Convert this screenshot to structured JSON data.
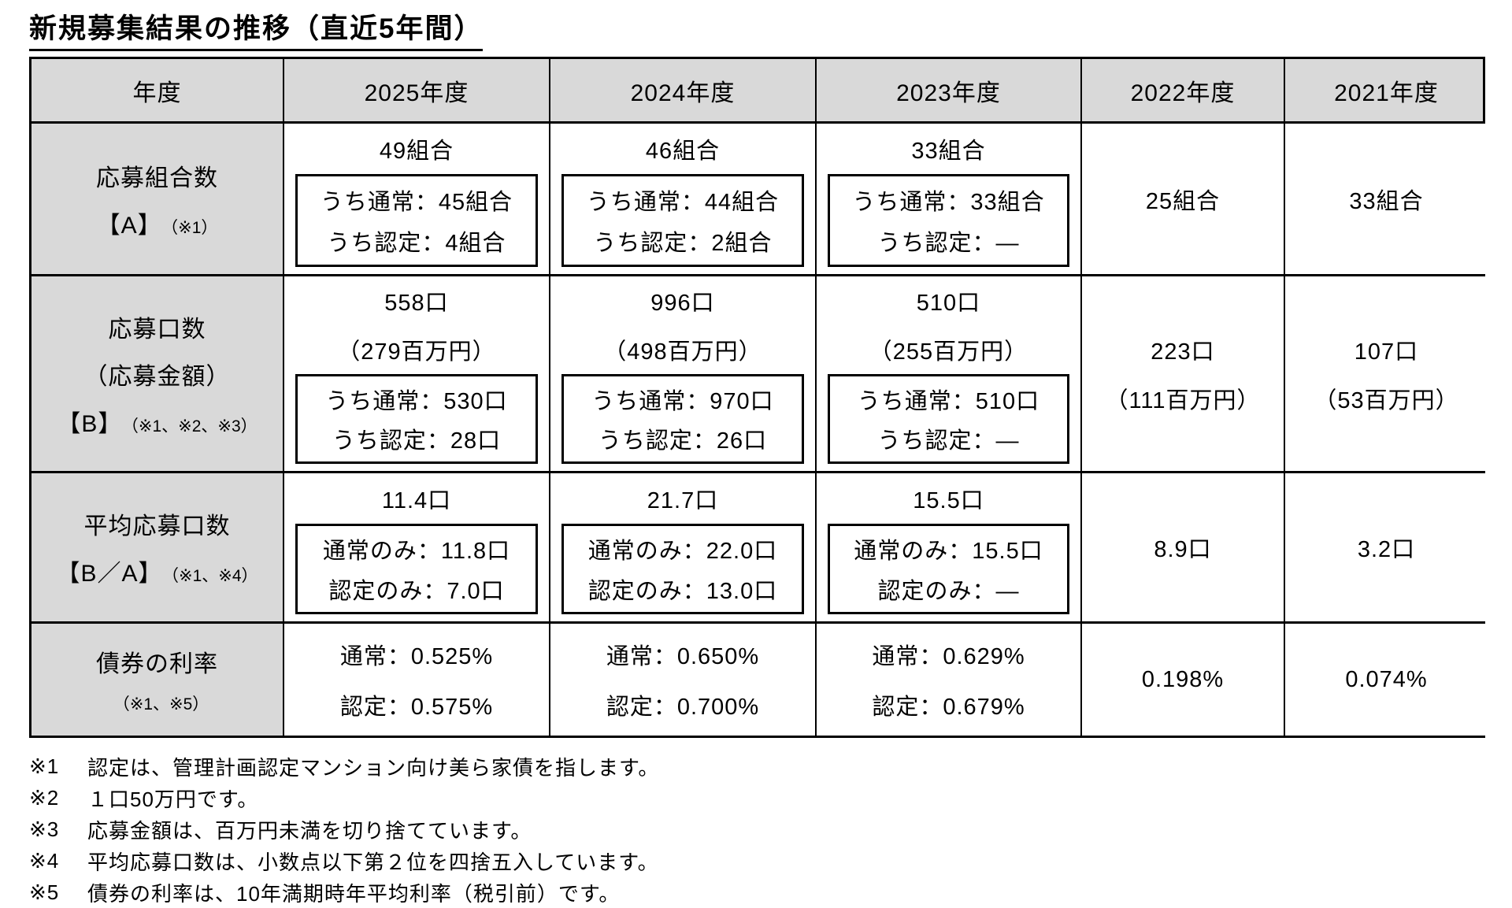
{
  "title": "新規募集結果の推移（直近5年間）",
  "colors": {
    "header_bg": "#d9d9d9",
    "border": "#000000",
    "text": "#000000",
    "page_bg": "#ffffff"
  },
  "table": {
    "corner_label": "年度",
    "year_headers": [
      "2025年度",
      "2024年度",
      "2023年度",
      "2022年度",
      "2021年度"
    ],
    "rows": [
      {
        "label_lines": [
          "応募組合数"
        ],
        "label_key": "【A】",
        "label_note": "（※1）",
        "cells": [
          {
            "main": [
              "49組合"
            ],
            "box": [
              "うち通常：45組合",
              "うち認定：4組合"
            ]
          },
          {
            "main": [
              "46組合"
            ],
            "box": [
              "うち通常：44組合",
              "うち認定：2組合"
            ]
          },
          {
            "main": [
              "33組合"
            ],
            "box": [
              "うち通常：33組合",
              "うち認定：―"
            ]
          },
          {
            "main": [
              "25組合"
            ]
          },
          {
            "main": [
              "33組合"
            ]
          }
        ]
      },
      {
        "label_lines": [
          "応募口数",
          "（応募金額）"
        ],
        "label_key": "【B】",
        "label_note": "（※1、※2、※3）",
        "cells": [
          {
            "main": [
              "558口",
              "（279百万円）"
            ],
            "box": [
              "うち通常：530口",
              "うち認定：28口"
            ]
          },
          {
            "main": [
              "996口",
              "（498百万円）"
            ],
            "box": [
              "うち通常：970口",
              "うち認定：26口"
            ]
          },
          {
            "main": [
              "510口",
              "（255百万円）"
            ],
            "box": [
              "うち通常：510口",
              "うち認定：―"
            ]
          },
          {
            "main": [
              "223口",
              "（111百万円）"
            ]
          },
          {
            "main": [
              "107口",
              "（53百万円）"
            ]
          }
        ]
      },
      {
        "label_lines": [
          "平均応募口数"
        ],
        "label_key": "【B／A】",
        "label_note": "（※1、※4）",
        "cells": [
          {
            "main": [
              "11.4口"
            ],
            "box": [
              "通常のみ：11.8口",
              "認定のみ：7.0口"
            ]
          },
          {
            "main": [
              "21.7口"
            ],
            "box": [
              "通常のみ：22.0口",
              "認定のみ：13.0口"
            ]
          },
          {
            "main": [
              "15.5口"
            ],
            "box": [
              "通常のみ：15.5口",
              "認定のみ：―"
            ]
          },
          {
            "main": [
              "8.9口"
            ]
          },
          {
            "main": [
              "3.2口"
            ]
          }
        ]
      },
      {
        "label_lines": [
          "債券の利率"
        ],
        "label_key": "",
        "label_note": "（※1、※5）",
        "cells": [
          {
            "main": [
              "通常：0.525%",
              "認定：0.575%"
            ]
          },
          {
            "main": [
              "通常：0.650%",
              "認定：0.700%"
            ]
          },
          {
            "main": [
              "通常：0.629%",
              "認定：0.679%"
            ]
          },
          {
            "main": [
              "0.198%"
            ]
          },
          {
            "main": [
              "0.074%"
            ]
          }
        ]
      }
    ]
  },
  "footnotes": [
    {
      "marker": "※1",
      "text": "認定は、管理計画認定マンション向け美ら家債を指します。"
    },
    {
      "marker": "※2",
      "text": "１口50万円です。"
    },
    {
      "marker": "※3",
      "text": "応募金額は、百万円未満を切り捨てています。"
    },
    {
      "marker": "※4",
      "text": "平均応募口数は、小数点以下第２位を四捨五入しています。"
    },
    {
      "marker": "※5",
      "text": "債券の利率は、10年満期時年平均利率（税引前）です。"
    }
  ]
}
